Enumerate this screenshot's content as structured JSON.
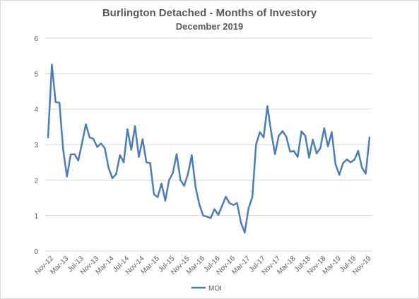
{
  "chart_data": {
    "type": "line",
    "title": "Burlington Detached - Months of Investory",
    "subtitle": "December 2019",
    "xlabel": "",
    "ylabel": "",
    "ylim": [
      0,
      6
    ],
    "yticks": [
      "0",
      "1",
      "2",
      "3",
      "4",
      "5",
      "6"
    ],
    "grid": "horizontal",
    "legend": "bottom",
    "x_tick_labels": [
      "Nov-12",
      "Mar-13",
      "Jul-13",
      "Nov-13",
      "Mar-14",
      "Jul-14",
      "Nov-14",
      "Mar-15",
      "Jul-15",
      "Nov-15",
      "Mar-16",
      "Jul-16",
      "Nov-16",
      "Mar-17",
      "Jul-17",
      "Nov-17",
      "Mar-18",
      "Jul-18",
      "Nov-18",
      "Mar-19",
      "Jul-19",
      "Nov-19"
    ],
    "x": [
      "Nov-12",
      "Dec-12",
      "Jan-13",
      "Feb-13",
      "Mar-13",
      "Apr-13",
      "May-13",
      "Jun-13",
      "Jul-13",
      "Aug-13",
      "Sep-13",
      "Oct-13",
      "Nov-13",
      "Dec-13",
      "Jan-14",
      "Feb-14",
      "Mar-14",
      "Apr-14",
      "May-14",
      "Jun-14",
      "Jul-14",
      "Aug-14",
      "Sep-14",
      "Oct-14",
      "Nov-14",
      "Dec-14",
      "Jan-15",
      "Feb-15",
      "Mar-15",
      "Apr-15",
      "May-15",
      "Jun-15",
      "Jul-15",
      "Aug-15",
      "Sep-15",
      "Oct-15",
      "Nov-15",
      "Dec-15",
      "Jan-16",
      "Feb-16",
      "Mar-16",
      "Apr-16",
      "May-16",
      "Jun-16",
      "Jul-16",
      "Aug-16",
      "Sep-16",
      "Oct-16",
      "Nov-16",
      "Dec-16",
      "Jan-17",
      "Feb-17",
      "Mar-17",
      "Apr-17",
      "May-17",
      "Jun-17",
      "Jul-17",
      "Aug-17",
      "Sep-17",
      "Oct-17",
      "Nov-17",
      "Dec-17",
      "Jan-18",
      "Feb-18",
      "Mar-18",
      "Apr-18",
      "May-18",
      "Jun-18",
      "Jul-18",
      "Aug-18",
      "Sep-18",
      "Oct-18",
      "Nov-18",
      "Dec-18",
      "Jan-19",
      "Feb-19",
      "Mar-19",
      "Apr-19",
      "May-19",
      "Jun-19",
      "Jul-19",
      "Aug-19",
      "Sep-19",
      "Oct-19",
      "Nov-19",
      "Dec-19"
    ],
    "series": [
      {
        "name": "MOI",
        "color": "#4a7ebb",
        "values": [
          3.2,
          5.25,
          4.2,
          4.18,
          2.85,
          2.1,
          2.72,
          2.73,
          2.55,
          3.05,
          3.57,
          3.2,
          3.16,
          2.93,
          3.03,
          2.9,
          2.35,
          2.05,
          2.17,
          2.7,
          2.5,
          3.43,
          2.85,
          3.52,
          2.65,
          3.15,
          2.5,
          2.48,
          1.6,
          1.52,
          1.9,
          1.42,
          2.0,
          2.2,
          2.73,
          2.0,
          1.84,
          2.18,
          2.7,
          1.8,
          1.32,
          1.0,
          0.97,
          0.93,
          1.18,
          1.02,
          1.27,
          1.53,
          1.35,
          1.3,
          1.35,
          0.8,
          0.52,
          1.2,
          1.52,
          3.0,
          3.35,
          3.2,
          4.08,
          3.35,
          2.73,
          3.25,
          3.38,
          3.22,
          2.8,
          2.82,
          2.65,
          3.37,
          3.25,
          2.63,
          3.14,
          2.75,
          2.9,
          3.46,
          2.95,
          3.35,
          2.45,
          2.15,
          2.48,
          2.58,
          2.5,
          2.57,
          2.82,
          2.35,
          2.18,
          3.2
        ]
      }
    ]
  }
}
